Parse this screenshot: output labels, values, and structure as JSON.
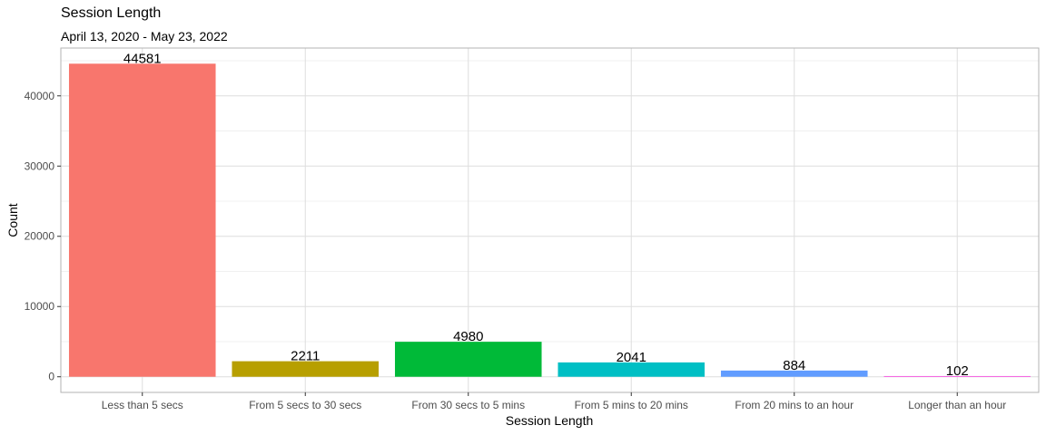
{
  "chart_data": {
    "type": "bar",
    "title": "Session Length",
    "subtitle": "April 13, 2020 - May 23, 2022",
    "xlabel": "Session Length",
    "ylabel": "Count",
    "categories": [
      "Less than 5 secs",
      "From 5 secs to 30 secs",
      "From 30 secs to 5 mins",
      "From 5 mins to 20 mins",
      "From 20 mins to an hour",
      "Longer than an hour"
    ],
    "values": [
      44581,
      2211,
      4980,
      2041,
      884,
      102
    ],
    "colors": [
      "#F8766D",
      "#B79F00",
      "#00BA38",
      "#00BFC4",
      "#619CFF",
      "#F564E3"
    ],
    "yticks": [
      0,
      10000,
      20000,
      30000,
      40000
    ],
    "ylim": [
      -2229,
      46810
    ],
    "grid": true,
    "legend": "none"
  }
}
